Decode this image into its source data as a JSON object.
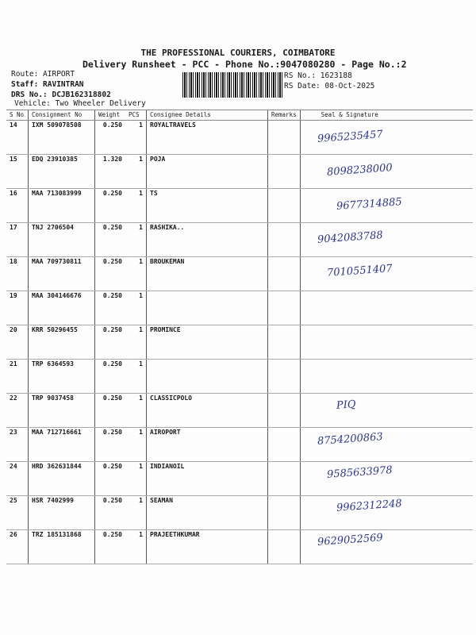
{
  "header": {
    "company": "THE PROFESSIONAL COURIERS, COIMBATORE",
    "subtitle": "Delivery Runsheet - PCC - Phone No.:9047080280 - Page No.:2",
    "route": "Route: AIRPORT",
    "staff": "Staff: RAVINTRAN",
    "drs": "DRS No.: DCJB162318802",
    "vehicle": "Vehicle: Two Wheeler Delivery",
    "rs_no": "RS No.: 1623188",
    "rs_date": "RS Date: 08-Oct-2025"
  },
  "columns": [
    "S No",
    "Consignment No",
    "Weight",
    "PCS",
    "Consignee Details",
    "Remarks",
    "Seal & Signature"
  ],
  "rows": [
    {
      "sno": "14",
      "cn": "IXM 509078508",
      "weight": "0.250",
      "pcs": "1",
      "consignee": "ROYALTRAVELS",
      "hand": "9965235457"
    },
    {
      "sno": "15",
      "cn": "EDQ 23910385",
      "weight": "1.320",
      "pcs": "1",
      "consignee": "POJA",
      "hand": "8098238000"
    },
    {
      "sno": "16",
      "cn": "MAA 713083999",
      "weight": "0.250",
      "pcs": "1",
      "consignee": "TS",
      "hand": "9677314885"
    },
    {
      "sno": "17",
      "cn": "TNJ 2706504",
      "weight": "0.250",
      "pcs": "1",
      "consignee": "RASHIKA..",
      "hand": "9042083788"
    },
    {
      "sno": "18",
      "cn": "MAA 709730811",
      "weight": "0.250",
      "pcs": "1",
      "consignee": "BROUKEMAN",
      "hand": "7010551407"
    },
    {
      "sno": "19",
      "cn": "MAA 304146676",
      "weight": "0.250",
      "pcs": "1",
      "consignee": "",
      "hand": ""
    },
    {
      "sno": "20",
      "cn": "KRR 50296455",
      "weight": "0.250",
      "pcs": "1",
      "consignee": "PROMINCE",
      "hand": ""
    },
    {
      "sno": "21",
      "cn": "TRP 6364593",
      "weight": "0.250",
      "pcs": "1",
      "consignee": "",
      "hand": ""
    },
    {
      "sno": "22",
      "cn": "TRP 9037458",
      "weight": "0.250",
      "pcs": "1",
      "consignee": "CLASSICPOLO",
      "hand": "PIQ"
    },
    {
      "sno": "23",
      "cn": "MAA 712716661",
      "weight": "0.250",
      "pcs": "1",
      "consignee": "AIROPORT",
      "hand": "8754200863"
    },
    {
      "sno": "24",
      "cn": "HRD 362631844",
      "weight": "0.250",
      "pcs": "1",
      "consignee": "INDIANOIL",
      "hand": "9585633978"
    },
    {
      "sno": "25",
      "cn": "HSR 7402999",
      "weight": "0.250",
      "pcs": "1",
      "consignee": "SEAMAN",
      "hand": "9962312248"
    },
    {
      "sno": "26",
      "cn": "TRZ 185131868",
      "weight": "0.250",
      "pcs": "1",
      "consignee": "PRAJEETHKUMAR",
      "hand": "9629052569"
    }
  ],
  "ink_color": "#2b3590"
}
